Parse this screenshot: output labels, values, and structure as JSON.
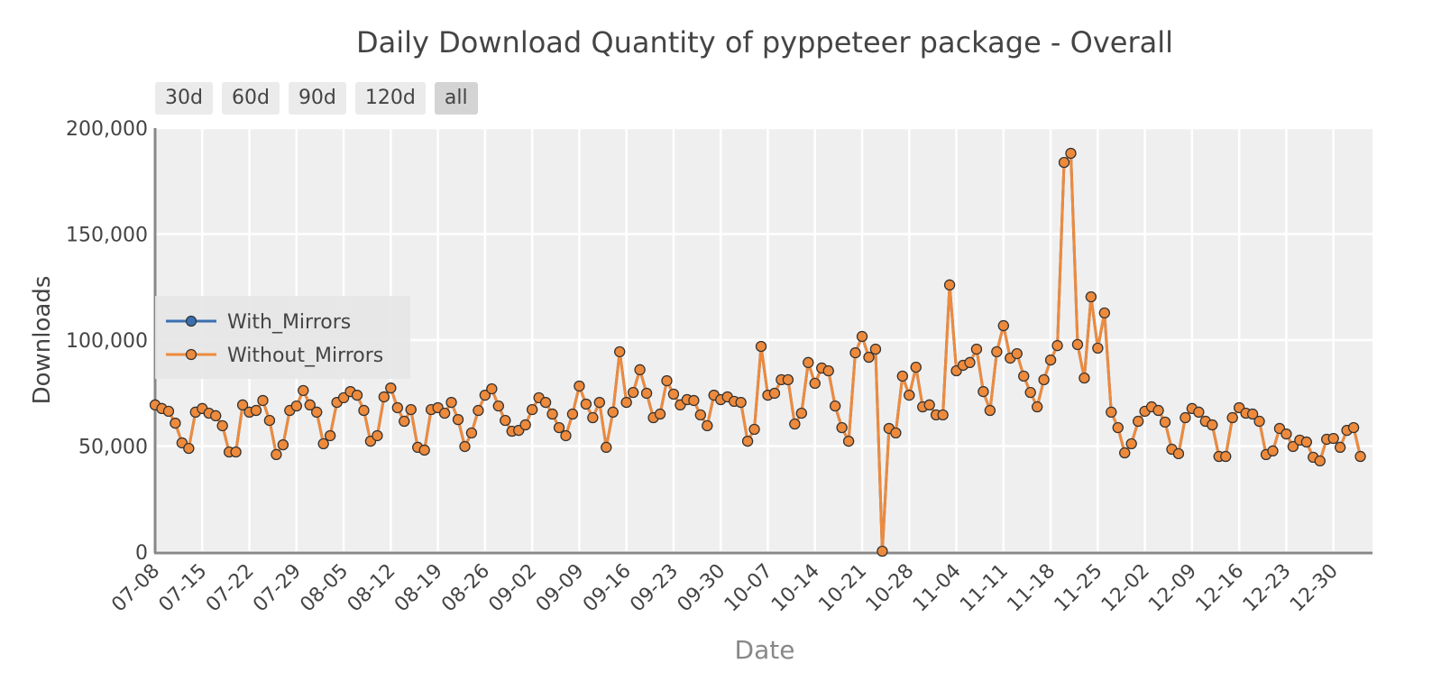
{
  "chart_data": {
    "type": "line",
    "title": "Daily Download Quantity of pyppeteer package - Overall",
    "x_label": "Date",
    "y_label": "Downloads",
    "range_buttons": [
      "30d",
      "60d",
      "90d",
      "120d",
      "all"
    ],
    "active_button": "all",
    "legend": "left",
    "grid": true,
    "categories": [
      "07-08",
      "07-09",
      "07-10",
      "07-11",
      "07-12",
      "07-13",
      "07-14",
      "07-15",
      "07-16",
      "07-17",
      "07-18",
      "07-19",
      "07-20",
      "07-21",
      "07-22",
      "07-23",
      "07-24",
      "07-25",
      "07-26",
      "07-27",
      "07-28",
      "07-29",
      "07-30",
      "07-31",
      "08-01",
      "08-02",
      "08-03",
      "08-04",
      "08-05",
      "08-06",
      "08-07",
      "08-08",
      "08-09",
      "08-10",
      "08-11",
      "08-12",
      "08-13",
      "08-14",
      "08-15",
      "08-16",
      "08-17",
      "08-18",
      "08-19",
      "08-20",
      "08-21",
      "08-22",
      "08-23",
      "08-24",
      "08-25",
      "08-26",
      "08-27",
      "08-28",
      "08-29",
      "08-30",
      "08-31",
      "09-01",
      "09-02",
      "09-03",
      "09-04",
      "09-05",
      "09-06",
      "09-07",
      "09-08",
      "09-09",
      "09-10",
      "09-11",
      "09-12",
      "09-13",
      "09-14",
      "09-15",
      "09-16",
      "09-17",
      "09-18",
      "09-19",
      "09-20",
      "09-21",
      "09-22",
      "09-23",
      "09-24",
      "09-25",
      "09-26",
      "09-27",
      "09-28",
      "09-29",
      "09-30",
      "10-01",
      "10-02",
      "10-03",
      "10-04",
      "10-05",
      "10-06",
      "10-07",
      "10-08",
      "10-09",
      "10-10",
      "10-11",
      "10-12",
      "10-13",
      "10-14",
      "10-15",
      "10-16",
      "10-17",
      "10-18",
      "10-19",
      "10-20",
      "10-21",
      "10-22",
      "10-23",
      "10-24",
      "10-25",
      "10-26",
      "10-27",
      "10-28",
      "10-29",
      "10-30",
      "10-31",
      "11-01",
      "11-02",
      "11-03",
      "11-04",
      "11-05",
      "11-06",
      "11-07",
      "11-08",
      "11-09",
      "11-10",
      "11-11",
      "11-12",
      "11-13",
      "11-14",
      "11-15",
      "11-16",
      "11-17",
      "11-18",
      "11-19",
      "11-20",
      "11-21",
      "11-22",
      "11-23",
      "11-24",
      "11-25",
      "11-26",
      "11-27",
      "11-28",
      "11-29",
      "11-30",
      "12-01",
      "12-02",
      "12-03",
      "12-04",
      "12-05",
      "12-06",
      "12-07",
      "12-08",
      "12-09",
      "12-10",
      "12-11",
      "12-12",
      "12-13",
      "12-14",
      "12-15",
      "12-16",
      "12-17",
      "12-18",
      "12-19",
      "12-20",
      "12-21",
      "12-22",
      "12-23",
      "12-24",
      "12-25",
      "12-26",
      "12-27",
      "12-28",
      "12-29",
      "12-30",
      "12-31",
      "01-01",
      "01-02",
      "01-03"
    ],
    "xticks": [
      "07-08",
      "07-15",
      "07-22",
      "07-29",
      "08-05",
      "08-12",
      "08-19",
      "08-26",
      "09-02",
      "09-09",
      "09-16",
      "09-23",
      "09-30",
      "10-07",
      "10-14",
      "10-21",
      "10-28",
      "11-04",
      "11-11",
      "11-18",
      "11-25",
      "12-02",
      "12-09",
      "12-16",
      "12-23",
      "12-30"
    ],
    "ylim": [
      0,
      200000
    ],
    "yticks": [
      0,
      {
        "value": 50000,
        "label": "50,000"
      },
      {
        "value": 100000,
        "label": "100,000"
      },
      {
        "value": 150000,
        "label": "150,000"
      },
      {
        "value": 200000,
        "label": "200,000"
      }
    ],
    "series": [
      {
        "name": "With_Mirrors",
        "color": "#3a6fb0",
        "values": [
          69400,
          67700,
          66400,
          60800,
          51500,
          48900,
          66000,
          67700,
          65500,
          64300,
          59600,
          47200,
          47200,
          69400,
          66000,
          66800,
          71500,
          62100,
          46000,
          50600,
          66800,
          68900,
          76200,
          69400,
          66000,
          51100,
          54900,
          70600,
          72800,
          75700,
          74000,
          66800,
          52300,
          54900,
          73200,
          77400,
          68100,
          61700,
          67200,
          49400,
          48100,
          67200,
          68100,
          65500,
          70600,
          62500,
          49800,
          56200,
          66800,
          74000,
          77000,
          68900,
          62100,
          57000,
          57400,
          60000,
          67200,
          72800,
          70600,
          65100,
          58700,
          54900,
          65100,
          78300,
          69800,
          63400,
          70600,
          49400,
          66000,
          94500,
          70600,
          75300,
          86000,
          74900,
          63400,
          65100,
          80800,
          74500,
          69400,
          71900,
          71500,
          64700,
          59600,
          74000,
          71900,
          73200,
          71100,
          70600,
          52300,
          57900,
          97000,
          74000,
          74900,
          81300,
          81300,
          60400,
          65500,
          89400,
          79600,
          86800,
          85500,
          68900,
          58700,
          52300,
          94000,
          101700,
          91900,
          95700,
          400,
          58300,
          56200,
          83000,
          74000,
          87200,
          68500,
          69400,
          64700,
          64700,
          126000,
          85500,
          88100,
          89400,
          95700,
          75700,
          66800,
          94500,
          106800,
          91500,
          93600,
          83000,
          75300,
          68500,
          81300,
          90600,
          97400,
          183800,
          188100,
          97900,
          82100,
          120400,
          96200,
          112800,
          66000,
          58700,
          46800,
          51100,
          61700,
          66400,
          68500,
          66800,
          61300,
          48500,
          46400,
          63400,
          67700,
          66000,
          61700,
          60000,
          45100,
          45100,
          63400,
          68100,
          65500,
          65100,
          61700,
          46000,
          47700,
          58300,
          55700,
          49800,
          52800,
          51900,
          44700,
          43000,
          53200,
          53600,
          49400,
          57400,
          58700,
          45100
        ]
      },
      {
        "name": "Without_Mirrors",
        "color": "#ee8a3c",
        "values": [
          69400,
          67700,
          66400,
          60800,
          51500,
          48900,
          66000,
          67700,
          65500,
          64300,
          59600,
          47200,
          47200,
          69400,
          66000,
          66800,
          71500,
          62100,
          46000,
          50600,
          66800,
          68900,
          76200,
          69400,
          66000,
          51100,
          54900,
          70600,
          72800,
          75700,
          74000,
          66800,
          52300,
          54900,
          73200,
          77400,
          68100,
          61700,
          67200,
          49400,
          48100,
          67200,
          68100,
          65500,
          70600,
          62500,
          49800,
          56200,
          66800,
          74000,
          77000,
          68900,
          62100,
          57000,
          57400,
          60000,
          67200,
          72800,
          70600,
          65100,
          58700,
          54900,
          65100,
          78300,
          69800,
          63400,
          70600,
          49400,
          66000,
          94500,
          70600,
          75300,
          86000,
          74900,
          63400,
          65100,
          80800,
          74500,
          69400,
          71900,
          71500,
          64700,
          59600,
          74000,
          71900,
          73200,
          71100,
          70600,
          52300,
          57900,
          97000,
          74000,
          74900,
          81300,
          81300,
          60400,
          65500,
          89400,
          79600,
          86800,
          85500,
          68900,
          58700,
          52300,
          94000,
          101700,
          91900,
          95700,
          400,
          58300,
          56200,
          83000,
          74000,
          87200,
          68500,
          69400,
          64700,
          64700,
          126000,
          85500,
          88100,
          89400,
          95700,
          75700,
          66800,
          94500,
          106800,
          91500,
          93600,
          83000,
          75300,
          68500,
          81300,
          90600,
          97400,
          183800,
          188100,
          97900,
          82100,
          120400,
          96200,
          112800,
          66000,
          58700,
          46800,
          51100,
          61700,
          66400,
          68500,
          66800,
          61300,
          48500,
          46400,
          63400,
          67700,
          66000,
          61700,
          60000,
          45100,
          45100,
          63400,
          68100,
          65500,
          65100,
          61700,
          46000,
          47700,
          58300,
          55700,
          49800,
          52800,
          51900,
          44700,
          43000,
          53200,
          53600,
          49400,
          57400,
          58700,
          45100
        ]
      }
    ]
  }
}
